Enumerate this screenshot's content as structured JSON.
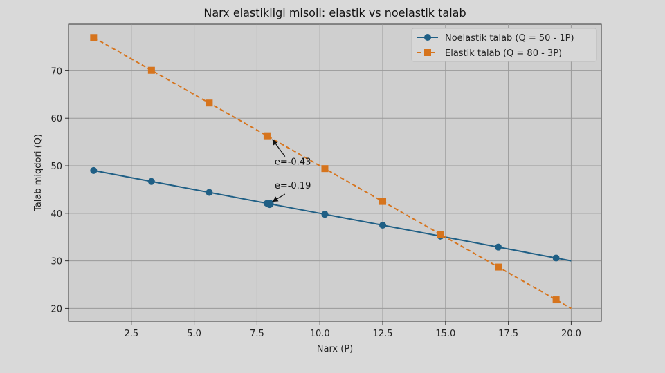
{
  "chart_data": {
    "type": "line",
    "title": "Narx elastikligi misoli: elastik vs noelastik talab",
    "xlabel": "Narx (P)",
    "ylabel": "Talab miqdori (Q)",
    "xlim": [
      0,
      21.2
    ],
    "ylim": [
      17.3,
      79.8
    ],
    "xticks": [
      2.5,
      5.0,
      7.5,
      10.0,
      12.5,
      15.0,
      17.5,
      20.0
    ],
    "xtick_labels": [
      "2.5",
      "5.0",
      "7.5",
      "10.0",
      "12.5",
      "15.0",
      "17.5",
      "20.0"
    ],
    "yticks": [
      20,
      30,
      40,
      50,
      60,
      70
    ],
    "ytick_labels": [
      "20",
      "30",
      "40",
      "50",
      "60",
      "70"
    ],
    "grid": true,
    "legend_position": "top-right",
    "series": [
      {
        "name": "Noelastik talab (Q = 50 - 1P)",
        "color": "#1f5f85",
        "linestyle": "solid",
        "marker": "circle",
        "x": [
          1.0,
          3.3,
          5.6,
          7.9,
          8.0,
          10.2,
          12.5,
          14.8,
          17.1,
          19.4,
          20.0
        ],
        "y": [
          49.0,
          46.7,
          44.4,
          42.1,
          42.0,
          39.8,
          37.5,
          35.2,
          32.9,
          30.6,
          30.0
        ],
        "marker_indices": [
          0,
          1,
          2,
          3,
          4,
          5,
          6,
          7,
          8,
          9
        ]
      },
      {
        "name": "Elastik talab (Q = 80 - 3P)",
        "color": "#d6741d",
        "linestyle": "dashed",
        "marker": "square",
        "x": [
          1.0,
          3.3,
          5.6,
          7.9,
          8.0,
          10.2,
          12.5,
          14.8,
          17.1,
          19.4,
          20.0
        ],
        "y": [
          77.0,
          70.1,
          63.2,
          56.3,
          56.0,
          49.4,
          42.5,
          35.6,
          28.7,
          21.8,
          20.0
        ],
        "marker_indices": [
          0,
          1,
          2,
          3,
          5,
          6,
          7,
          8,
          9
        ]
      }
    ],
    "annotations": [
      {
        "text": "e=-0.43",
        "x": 8.0,
        "y": 56.0,
        "text_x": 8.2,
        "text_y": 50.2
      },
      {
        "text": "e=-0.19",
        "x": 8.0,
        "y": 42.0,
        "text_x": 8.2,
        "text_y": 45.2
      }
    ]
  }
}
